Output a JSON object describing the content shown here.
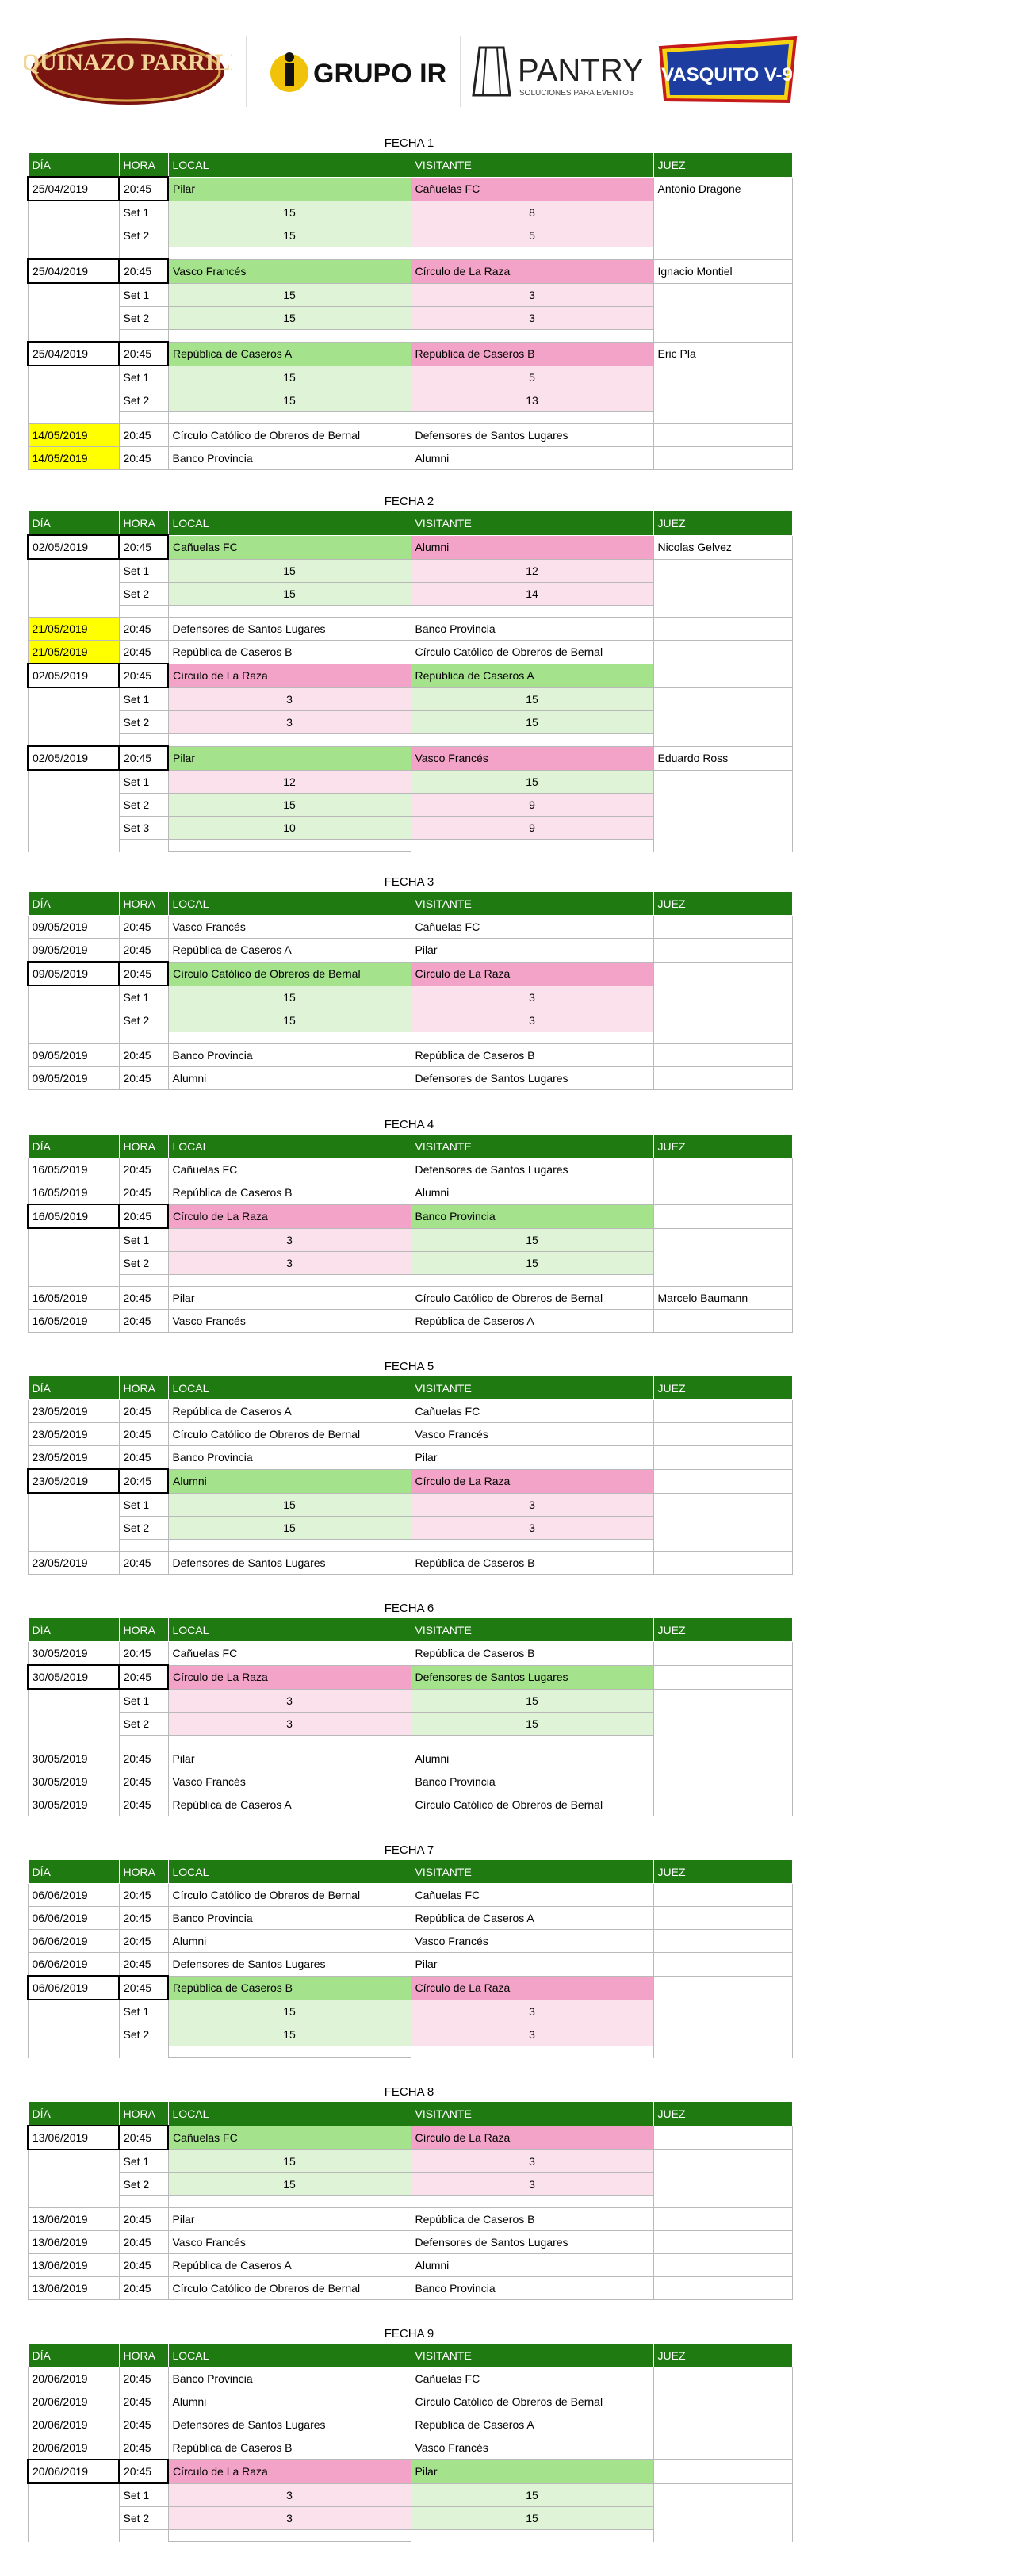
{
  "sponsors": [
    {
      "name": "esquinazo-parrilla-logo",
      "text": "ESQUINAZO PARRILLA"
    },
    {
      "name": "grupo-irizar-logo",
      "text": "GRUPO IRIZAR"
    },
    {
      "name": "pantry-logo",
      "text": "PANTRY",
      "sub": "SOLUCIONES PARA EVENTOS"
    },
    {
      "name": "vasquito-v9-logo",
      "text": "VASQUITO V-9"
    }
  ],
  "headers": [
    "DÍA",
    "HORA",
    "LOCAL",
    "VISITANTE",
    "JUEZ"
  ],
  "fechas": [
    {
      "title": "FECHA 1",
      "rows": [
        {
          "t": "match",
          "dia": "25/04/2019",
          "hora": "20:45",
          "local": "Pilar",
          "visitante": "Cañuelas FC",
          "juez": "Antonio Dragone",
          "lc": "g",
          "vc": "p",
          "bk": true
        },
        {
          "t": "set",
          "label": "Set 1",
          "l": "15",
          "v": "8",
          "lc": "lg",
          "vc": "lp"
        },
        {
          "t": "set",
          "label": "Set 2",
          "l": "15",
          "v": "5",
          "lc": "lg",
          "vc": "lp"
        },
        {
          "t": "gap"
        },
        {
          "t": "match",
          "dia": "25/04/2019",
          "hora": "20:45",
          "local": "Vasco Francés",
          "visitante": "Círculo de La Raza",
          "juez": "Ignacio Montiel",
          "lc": "g",
          "vc": "p",
          "bk": true
        },
        {
          "t": "set",
          "label": "Set 1",
          "l": "15",
          "v": "3",
          "lc": "lg",
          "vc": "lp"
        },
        {
          "t": "set",
          "label": "Set 2",
          "l": "15",
          "v": "3",
          "lc": "lg",
          "vc": "lp"
        },
        {
          "t": "gap"
        },
        {
          "t": "match",
          "dia": "25/04/2019",
          "hora": "20:45",
          "local": "República de Caseros A",
          "visitante": "República de Caseros B",
          "juez": "Eric Pla",
          "lc": "g",
          "vc": "p",
          "bk": true
        },
        {
          "t": "set",
          "label": "Set 1",
          "l": "15",
          "v": "5",
          "lc": "lg",
          "vc": "lp"
        },
        {
          "t": "set",
          "label": "Set 2",
          "l": "15",
          "v": "13",
          "lc": "lg",
          "vc": "lp"
        },
        {
          "t": "gap"
        },
        {
          "t": "match",
          "dia": "14/05/2019",
          "hora": "20:45",
          "local": "Círculo Católico de Obreros de Bernal",
          "visitante": "Defensores de Santos Lugares",
          "juez": "",
          "dc": "y"
        },
        {
          "t": "match",
          "dia": "14/05/2019",
          "hora": "20:45",
          "local": "Banco Provincia",
          "visitante": "Alumni",
          "juez": "",
          "dc": "y"
        }
      ]
    },
    {
      "title": "FECHA 2",
      "rows": [
        {
          "t": "match",
          "dia": "02/05/2019",
          "hora": "20:45",
          "local": "Cañuelas FC",
          "visitante": "Alumni",
          "juez": "Nicolas Gelvez",
          "lc": "g",
          "vc": "p",
          "bk": true
        },
        {
          "t": "set",
          "label": "Set 1",
          "l": "15",
          "v": "12",
          "lc": "lg",
          "vc": "lp"
        },
        {
          "t": "set",
          "label": "Set 2",
          "l": "15",
          "v": "14",
          "lc": "lg",
          "vc": "lp"
        },
        {
          "t": "gap"
        },
        {
          "t": "match",
          "dia": "21/05/2019",
          "hora": "20:45",
          "local": "Defensores de Santos Lugares",
          "visitante": "Banco Provincia",
          "juez": "",
          "dc": "y"
        },
        {
          "t": "match",
          "dia": "21/05/2019",
          "hora": "20:45",
          "local": "República de Caseros B",
          "visitante": "Círculo Católico de Obreros de Bernal",
          "juez": "",
          "dc": "y"
        },
        {
          "t": "match",
          "dia": "02/05/2019",
          "hora": "20:45",
          "local": "Círculo de La Raza",
          "visitante": "República de Caseros A",
          "juez": "",
          "lc": "p",
          "vc": "g",
          "bk": true
        },
        {
          "t": "set",
          "label": "Set 1",
          "l": "3",
          "v": "15",
          "lc": "lp",
          "vc": "lg"
        },
        {
          "t": "set",
          "label": "Set 2",
          "l": "3",
          "v": "15",
          "lc": "lp",
          "vc": "lg"
        },
        {
          "t": "gap"
        },
        {
          "t": "match",
          "dia": "02/05/2019",
          "hora": "20:45",
          "local": "Pilar",
          "visitante": "Vasco Francés",
          "juez": "Eduardo Ross",
          "lc": "g",
          "vc": "p",
          "bk": true
        },
        {
          "t": "set",
          "label": "Set 1",
          "l": "12",
          "v": "15",
          "lc": "lp",
          "vc": "lg"
        },
        {
          "t": "set",
          "label": "Set 2",
          "l": "15",
          "v": "9",
          "lc": "lg",
          "vc": "lp"
        },
        {
          "t": "set",
          "label": "Set 3",
          "l": "10",
          "v": "9",
          "lc": "lg",
          "vc": "lp"
        },
        {
          "t": "gap"
        }
      ]
    },
    {
      "title": "FECHA 3",
      "rows": [
        {
          "t": "match",
          "dia": "09/05/2019",
          "hora": "20:45",
          "local": "Vasco Francés",
          "visitante": "Cañuelas FC",
          "juez": ""
        },
        {
          "t": "match",
          "dia": "09/05/2019",
          "hora": "20:45",
          "local": "República de Caseros A",
          "visitante": "Pilar",
          "juez": ""
        },
        {
          "t": "match",
          "dia": "09/05/2019",
          "hora": "20:45",
          "local": "Círculo Católico de Obreros de Bernal",
          "visitante": "Círculo de La Raza",
          "juez": "",
          "lc": "g",
          "vc": "p",
          "bk": true
        },
        {
          "t": "set",
          "label": "Set 1",
          "l": "15",
          "v": "3",
          "lc": "lg",
          "vc": "lp"
        },
        {
          "t": "set",
          "label": "Set 2",
          "l": "15",
          "v": "3",
          "lc": "lg",
          "vc": "lp"
        },
        {
          "t": "gap"
        },
        {
          "t": "match",
          "dia": "09/05/2019",
          "hora": "20:45",
          "local": "Banco Provincia",
          "visitante": "República de Caseros B",
          "juez": ""
        },
        {
          "t": "match",
          "dia": "09/05/2019",
          "hora": "20:45",
          "local": "Alumni",
          "visitante": "Defensores de Santos Lugares",
          "juez": ""
        }
      ]
    },
    {
      "title": "FECHA 4",
      "rows": [
        {
          "t": "match",
          "dia": "16/05/2019",
          "hora": "20:45",
          "local": "Cañuelas FC",
          "visitante": "Defensores de Santos Lugares",
          "juez": ""
        },
        {
          "t": "match",
          "dia": "16/05/2019",
          "hora": "20:45",
          "local": "República de Caseros B",
          "visitante": "Alumni",
          "juez": ""
        },
        {
          "t": "match",
          "dia": "16/05/2019",
          "hora": "20:45",
          "local": "Círculo de La Raza",
          "visitante": "Banco Provincia",
          "juez": "",
          "lc": "p",
          "vc": "g",
          "bk": true
        },
        {
          "t": "set",
          "label": "Set 1",
          "l": "3",
          "v": "15",
          "lc": "lp",
          "vc": "lg"
        },
        {
          "t": "set",
          "label": "Set 2",
          "l": "3",
          "v": "15",
          "lc": "lp",
          "vc": "lg"
        },
        {
          "t": "gap"
        },
        {
          "t": "match",
          "dia": "16/05/2019",
          "hora": "20:45",
          "local": "Pilar",
          "visitante": "Círculo Católico de Obreros de Bernal",
          "juez": "Marcelo Baumann"
        },
        {
          "t": "match",
          "dia": "16/05/2019",
          "hora": "20:45",
          "local": "Vasco Francés",
          "visitante": "República de Caseros A",
          "juez": ""
        }
      ]
    },
    {
      "title": "FECHA 5",
      "rows": [
        {
          "t": "match",
          "dia": "23/05/2019",
          "hora": "20:45",
          "local": "República de Caseros A",
          "visitante": "Cañuelas FC",
          "juez": ""
        },
        {
          "t": "match",
          "dia": "23/05/2019",
          "hora": "20:45",
          "local": "Círculo Católico de Obreros de Bernal",
          "visitante": "Vasco Francés",
          "juez": ""
        },
        {
          "t": "match",
          "dia": "23/05/2019",
          "hora": "20:45",
          "local": "Banco Provincia",
          "visitante": "Pilar",
          "juez": ""
        },
        {
          "t": "match",
          "dia": "23/05/2019",
          "hora": "20:45",
          "local": "Alumni",
          "visitante": "Círculo de La Raza",
          "juez": "",
          "lc": "g",
          "vc": "p",
          "bk": true
        },
        {
          "t": "set",
          "label": "Set 1",
          "l": "15",
          "v": "3",
          "lc": "lg",
          "vc": "lp"
        },
        {
          "t": "set",
          "label": "Set 2",
          "l": "15",
          "v": "3",
          "lc": "lg",
          "vc": "lp"
        },
        {
          "t": "gap"
        },
        {
          "t": "match",
          "dia": "23/05/2019",
          "hora": "20:45",
          "local": "Defensores de Santos Lugares",
          "visitante": "República de Caseros B",
          "juez": ""
        }
      ]
    },
    {
      "title": "FECHA 6",
      "rows": [
        {
          "t": "match",
          "dia": "30/05/2019",
          "hora": "20:45",
          "local": "Cañuelas FC",
          "visitante": "República de Caseros B",
          "juez": ""
        },
        {
          "t": "match",
          "dia": "30/05/2019",
          "hora": "20:45",
          "local": "Círculo de La Raza",
          "visitante": "Defensores de Santos Lugares",
          "juez": "",
          "lc": "p",
          "vc": "g",
          "bk": true
        },
        {
          "t": "set",
          "label": "Set 1",
          "l": "3",
          "v": "15",
          "lc": "lp",
          "vc": "lg"
        },
        {
          "t": "set",
          "label": "Set 2",
          "l": "3",
          "v": "15",
          "lc": "lp",
          "vc": "lg"
        },
        {
          "t": "gap"
        },
        {
          "t": "match",
          "dia": "30/05/2019",
          "hora": "20:45",
          "local": "Pilar",
          "visitante": "Alumni",
          "juez": ""
        },
        {
          "t": "match",
          "dia": "30/05/2019",
          "hora": "20:45",
          "local": "Vasco Francés",
          "visitante": "Banco Provincia",
          "juez": ""
        },
        {
          "t": "match",
          "dia": "30/05/2019",
          "hora": "20:45",
          "local": "República de Caseros A",
          "visitante": "Círculo Católico de Obreros de Bernal",
          "juez": ""
        }
      ]
    },
    {
      "title": "FECHA 7",
      "rows": [
        {
          "t": "match",
          "dia": "06/06/2019",
          "hora": "20:45",
          "local": "Círculo Católico de Obreros de Bernal",
          "visitante": "Cañuelas FC",
          "juez": ""
        },
        {
          "t": "match",
          "dia": "06/06/2019",
          "hora": "20:45",
          "local": "Banco Provincia",
          "visitante": "República de Caseros A",
          "juez": ""
        },
        {
          "t": "match",
          "dia": "06/06/2019",
          "hora": "20:45",
          "local": "Alumni",
          "visitante": "Vasco Francés",
          "juez": ""
        },
        {
          "t": "match",
          "dia": "06/06/2019",
          "hora": "20:45",
          "local": "Defensores de Santos Lugares",
          "visitante": "Pilar",
          "juez": ""
        },
        {
          "t": "match",
          "dia": "06/06/2019",
          "hora": "20:45",
          "local": "República de Caseros B",
          "visitante": "Círculo de La Raza",
          "juez": "",
          "lc": "g",
          "vc": "p",
          "bk": true
        },
        {
          "t": "set",
          "label": "Set 1",
          "l": "15",
          "v": "3",
          "lc": "lg",
          "vc": "lp"
        },
        {
          "t": "set",
          "label": "Set 2",
          "l": "15",
          "v": "3",
          "lc": "lg",
          "vc": "lp"
        },
        {
          "t": "gap"
        }
      ]
    },
    {
      "title": "FECHA 8",
      "rows": [
        {
          "t": "match",
          "dia": "13/06/2019",
          "hora": "20:45",
          "local": "Cañuelas FC",
          "visitante": "Círculo de La Raza",
          "juez": "",
          "lc": "g",
          "vc": "p",
          "bk": true
        },
        {
          "t": "set",
          "label": "Set 1",
          "l": "15",
          "v": "3",
          "lc": "lg",
          "vc": "lp"
        },
        {
          "t": "set",
          "label": "Set 2",
          "l": "15",
          "v": "3",
          "lc": "lg",
          "vc": "lp"
        },
        {
          "t": "gap"
        },
        {
          "t": "match",
          "dia": "13/06/2019",
          "hora": "20:45",
          "local": "Pilar",
          "visitante": "República de Caseros B",
          "juez": ""
        },
        {
          "t": "match",
          "dia": "13/06/2019",
          "hora": "20:45",
          "local": "Vasco Francés",
          "visitante": "Defensores de Santos Lugares",
          "juez": ""
        },
        {
          "t": "match",
          "dia": "13/06/2019",
          "hora": "20:45",
          "local": "República de Caseros A",
          "visitante": "Alumni",
          "juez": ""
        },
        {
          "t": "match",
          "dia": "13/06/2019",
          "hora": "20:45",
          "local": "Círculo Católico de Obreros de Bernal",
          "visitante": "Banco Provincia",
          "juez": ""
        }
      ]
    },
    {
      "title": "FECHA 9",
      "rows": [
        {
          "t": "match",
          "dia": "20/06/2019",
          "hora": "20:45",
          "local": "Banco Provincia",
          "visitante": "Cañuelas FC",
          "juez": ""
        },
        {
          "t": "match",
          "dia": "20/06/2019",
          "hora": "20:45",
          "local": "Alumni",
          "visitante": "Círculo Católico de Obreros de Bernal",
          "juez": ""
        },
        {
          "t": "match",
          "dia": "20/06/2019",
          "hora": "20:45",
          "local": "Defensores de Santos Lugares",
          "visitante": "República de Caseros A",
          "juez": ""
        },
        {
          "t": "match",
          "dia": "20/06/2019",
          "hora": "20:45",
          "local": "República de Caseros B",
          "visitante": "Vasco Francés",
          "juez": ""
        },
        {
          "t": "match",
          "dia": "20/06/2019",
          "hora": "20:45",
          "local": "Círculo de La Raza",
          "visitante": "Pilar",
          "juez": "",
          "lc": "p",
          "vc": "g",
          "bk": true
        },
        {
          "t": "set",
          "label": "Set 1",
          "l": "3",
          "v": "15",
          "lc": "lp",
          "vc": "lg"
        },
        {
          "t": "set",
          "label": "Set 2",
          "l": "3",
          "v": "15",
          "lc": "lp",
          "vc": "lg"
        },
        {
          "t": "gap"
        }
      ]
    }
  ]
}
